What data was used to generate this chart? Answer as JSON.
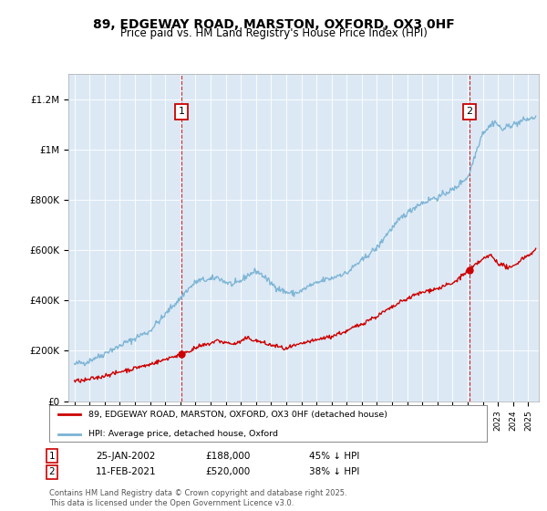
{
  "title": "89, EDGEWAY ROAD, MARSTON, OXFORD, OX3 0HF",
  "subtitle": "Price paid vs. HM Land Registry's House Price Index (HPI)",
  "title_fontsize": 10,
  "subtitle_fontsize": 8.5,
  "plot_bg_color": "#dce9f5",
  "hpi_color": "#7ab3d4",
  "price_color": "#cc0000",
  "ylim": [
    0,
    1300000
  ],
  "yticks": [
    0,
    200000,
    400000,
    600000,
    800000,
    1000000,
    1200000
  ],
  "ytick_labels": [
    "£0",
    "£200K",
    "£400K",
    "£600K",
    "£800K",
    "£1M",
    "£1.2M"
  ],
  "sale1_date": "25-JAN-2002",
  "sale1_price": 188000,
  "sale1_hpi_pct": "45% ↓ HPI",
  "sale1_x": 2002.07,
  "sale2_date": "11-FEB-2021",
  "sale2_price": 520000,
  "sale2_hpi_pct": "38% ↓ HPI",
  "sale2_x": 2021.12,
  "legend_label1": "89, EDGEWAY ROAD, MARSTON, OXFORD, OX3 0HF (detached house)",
  "legend_label2": "HPI: Average price, detached house, Oxford",
  "footer_text": "Contains HM Land Registry data © Crown copyright and database right 2025.\nThis data is licensed under the Open Government Licence v3.0."
}
